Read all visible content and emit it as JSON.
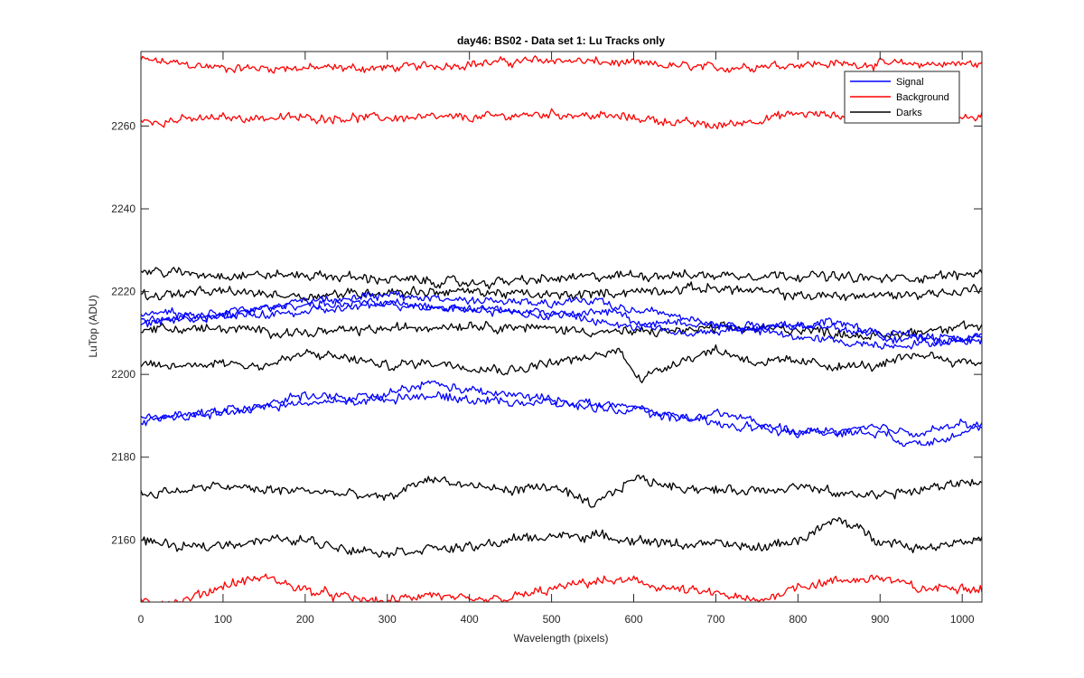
{
  "chart_data": {
    "type": "line",
    "title": "day46: BS02 - Data set 1: Lu Tracks only",
    "xlabel": "Wavelength (pixels)",
    "ylabel": "LuTop (ADU)",
    "xlim": [
      0,
      1024
    ],
    "ylim": [
      2145,
      2278
    ],
    "xticks": [
      0,
      100,
      200,
      300,
      400,
      500,
      600,
      700,
      800,
      900,
      1000
    ],
    "yticks": [
      2160,
      2180,
      2200,
      2220,
      2240,
      2260
    ],
    "grid": false,
    "legend_position": "top-right",
    "legend": [
      {
        "label": "Signal",
        "color": "#0000ff"
      },
      {
        "label": "Background",
        "color": "#ff0000"
      },
      {
        "label": "Darks",
        "color": "#000000"
      }
    ],
    "series": [
      {
        "group": "Background",
        "color": "#ff0000",
        "noise": 0.9,
        "x": [
          0,
          100,
          200,
          300,
          400,
          500,
          600,
          700,
          800,
          900,
          1000,
          1024
        ],
        "y": [
          2276,
          2274,
          2274,
          2274,
          2275,
          2276,
          2275,
          2274,
          2275,
          2275,
          2275,
          2275
        ]
      },
      {
        "group": "Background",
        "color": "#ff0000",
        "noise": 0.9,
        "x": [
          0,
          100,
          200,
          300,
          400,
          500,
          600,
          700,
          800,
          900,
          1000,
          1024
        ],
        "y": [
          2261,
          2262,
          2262,
          2262,
          2262,
          2263,
          2262,
          2260,
          2263,
          2262,
          2262,
          2262
        ]
      },
      {
        "group": "Background",
        "color": "#ff0000",
        "noise": 1.0,
        "x": [
          0,
          50,
          100,
          150,
          200,
          250,
          300,
          350,
          400,
          450,
          500,
          550,
          600,
          650,
          700,
          750,
          800,
          850,
          900,
          950,
          1000,
          1024
        ],
        "y": [
          2145,
          2145,
          2149,
          2151,
          2148,
          2146,
          2145,
          2147,
          2145,
          2146,
          2148,
          2150,
          2150,
          2148,
          2147,
          2145,
          2149,
          2150,
          2151,
          2148,
          2149,
          2148
        ]
      },
      {
        "group": "Darks",
        "color": "#000000",
        "noise": 1.0,
        "x": [
          0,
          100,
          200,
          300,
          400,
          500,
          600,
          700,
          800,
          900,
          1000,
          1024
        ],
        "y": [
          2225,
          2224,
          2224,
          2223,
          2222,
          2223,
          2224,
          2224,
          2224,
          2223,
          2224,
          2225
        ]
      },
      {
        "group": "Darks",
        "color": "#000000",
        "noise": 1.0,
        "x": [
          0,
          100,
          200,
          300,
          400,
          500,
          600,
          700,
          800,
          900,
          1000,
          1024
        ],
        "y": [
          2219,
          2220,
          2219,
          2220,
          2220,
          2219,
          2220,
          2221,
          2219,
          2219,
          2220,
          2221
        ]
      },
      {
        "group": "Darks",
        "color": "#000000",
        "noise": 1.0,
        "x": [
          0,
          100,
          200,
          300,
          400,
          500,
          600,
          700,
          800,
          900,
          1000,
          1024
        ],
        "y": [
          2211,
          2211,
          2210,
          2211,
          2212,
          2211,
          2210,
          2211,
          2211,
          2209,
          2212,
          2211
        ]
      },
      {
        "group": "Darks",
        "color": "#000000",
        "noise": 1.0,
        "x": [
          0,
          50,
          100,
          150,
          200,
          250,
          300,
          350,
          400,
          450,
          500,
          550,
          580,
          610,
          650,
          700,
          750,
          800,
          850,
          900,
          950,
          1000,
          1024
        ],
        "y": [
          2202,
          2202,
          2203,
          2202,
          2205,
          2204,
          2202,
          2203,
          2202,
          2201,
          2203,
          2204,
          2206,
          2199,
          2203,
          2206,
          2203,
          2203,
          2202,
          2202,
          2205,
          2203,
          2203
        ]
      },
      {
        "group": "Darks",
        "color": "#000000",
        "noise": 1.0,
        "x": [
          0,
          50,
          100,
          150,
          200,
          250,
          300,
          350,
          400,
          450,
          500,
          550,
          600,
          650,
          700,
          750,
          800,
          850,
          900,
          950,
          1000,
          1024
        ],
        "y": [
          2171,
          2172,
          2173,
          2172,
          2172,
          2171,
          2170,
          2175,
          2173,
          2172,
          2173,
          2168,
          2175,
          2173,
          2172,
          2172,
          2173,
          2171,
          2171,
          2172,
          2174,
          2174
        ]
      },
      {
        "group": "Darks",
        "color": "#000000",
        "noise": 1.0,
        "x": [
          0,
          50,
          100,
          150,
          200,
          250,
          300,
          350,
          400,
          450,
          500,
          550,
          600,
          650,
          700,
          750,
          800,
          850,
          900,
          950,
          1000,
          1024
        ],
        "y": [
          2160,
          2158,
          2159,
          2160,
          2160,
          2158,
          2157,
          2158,
          2158,
          2160,
          2161,
          2161,
          2160,
          2159,
          2159,
          2158,
          2160,
          2165,
          2160,
          2158,
          2160,
          2160
        ]
      },
      {
        "group": "Signal",
        "color": "#0000ff",
        "noise": 0.9,
        "x": [
          0,
          100,
          200,
          300,
          400,
          500,
          600,
          650,
          700,
          800,
          900,
          1000,
          1024
        ],
        "y": [
          2212,
          2215,
          2217,
          2217,
          2216,
          2215,
          2211,
          2213,
          2212,
          2212,
          2210,
          2209,
          2209
        ]
      },
      {
        "group": "Signal",
        "color": "#0000ff",
        "noise": 0.9,
        "x": [
          0,
          100,
          200,
          300,
          400,
          500,
          600,
          700,
          800,
          900,
          1000,
          1024
        ],
        "y": [
          2215,
          2214,
          2215,
          2217,
          2216,
          2214,
          2216,
          2212,
          2209,
          2207,
          2208,
          2209
        ]
      },
      {
        "group": "Signal",
        "color": "#0000ff",
        "noise": 0.9,
        "x": [
          0,
          100,
          200,
          300,
          400,
          500,
          560,
          600,
          650,
          700,
          800,
          850,
          900,
          1000,
          1024
        ],
        "y": [
          2213,
          2214,
          2218,
          2219,
          2218,
          2217,
          2218,
          2213,
          2210,
          2210,
          2212,
          2213,
          2209,
          2208,
          2209
        ]
      },
      {
        "group": "Signal",
        "color": "#0000ff",
        "noise": 0.9,
        "x": [
          0,
          100,
          200,
          250,
          300,
          350,
          400,
          450,
          500,
          600,
          700,
          750,
          800,
          900,
          950,
          1000,
          1024
        ],
        "y": [
          2189,
          2191,
          2195,
          2194,
          2195,
          2198,
          2196,
          2195,
          2194,
          2192,
          2188,
          2187,
          2186,
          2187,
          2186,
          2188,
          2187
        ]
      },
      {
        "group": "Signal",
        "color": "#0000ff",
        "noise": 0.9,
        "x": [
          0,
          100,
          200,
          300,
          330,
          400,
          500,
          600,
          680,
          700,
          800,
          900,
          940,
          1000,
          1024
        ],
        "y": [
          2189,
          2191,
          2193,
          2194,
          2195,
          2194,
          2193,
          2191,
          2189,
          2191,
          2186,
          2186,
          2183,
          2186,
          2188
        ]
      }
    ]
  }
}
